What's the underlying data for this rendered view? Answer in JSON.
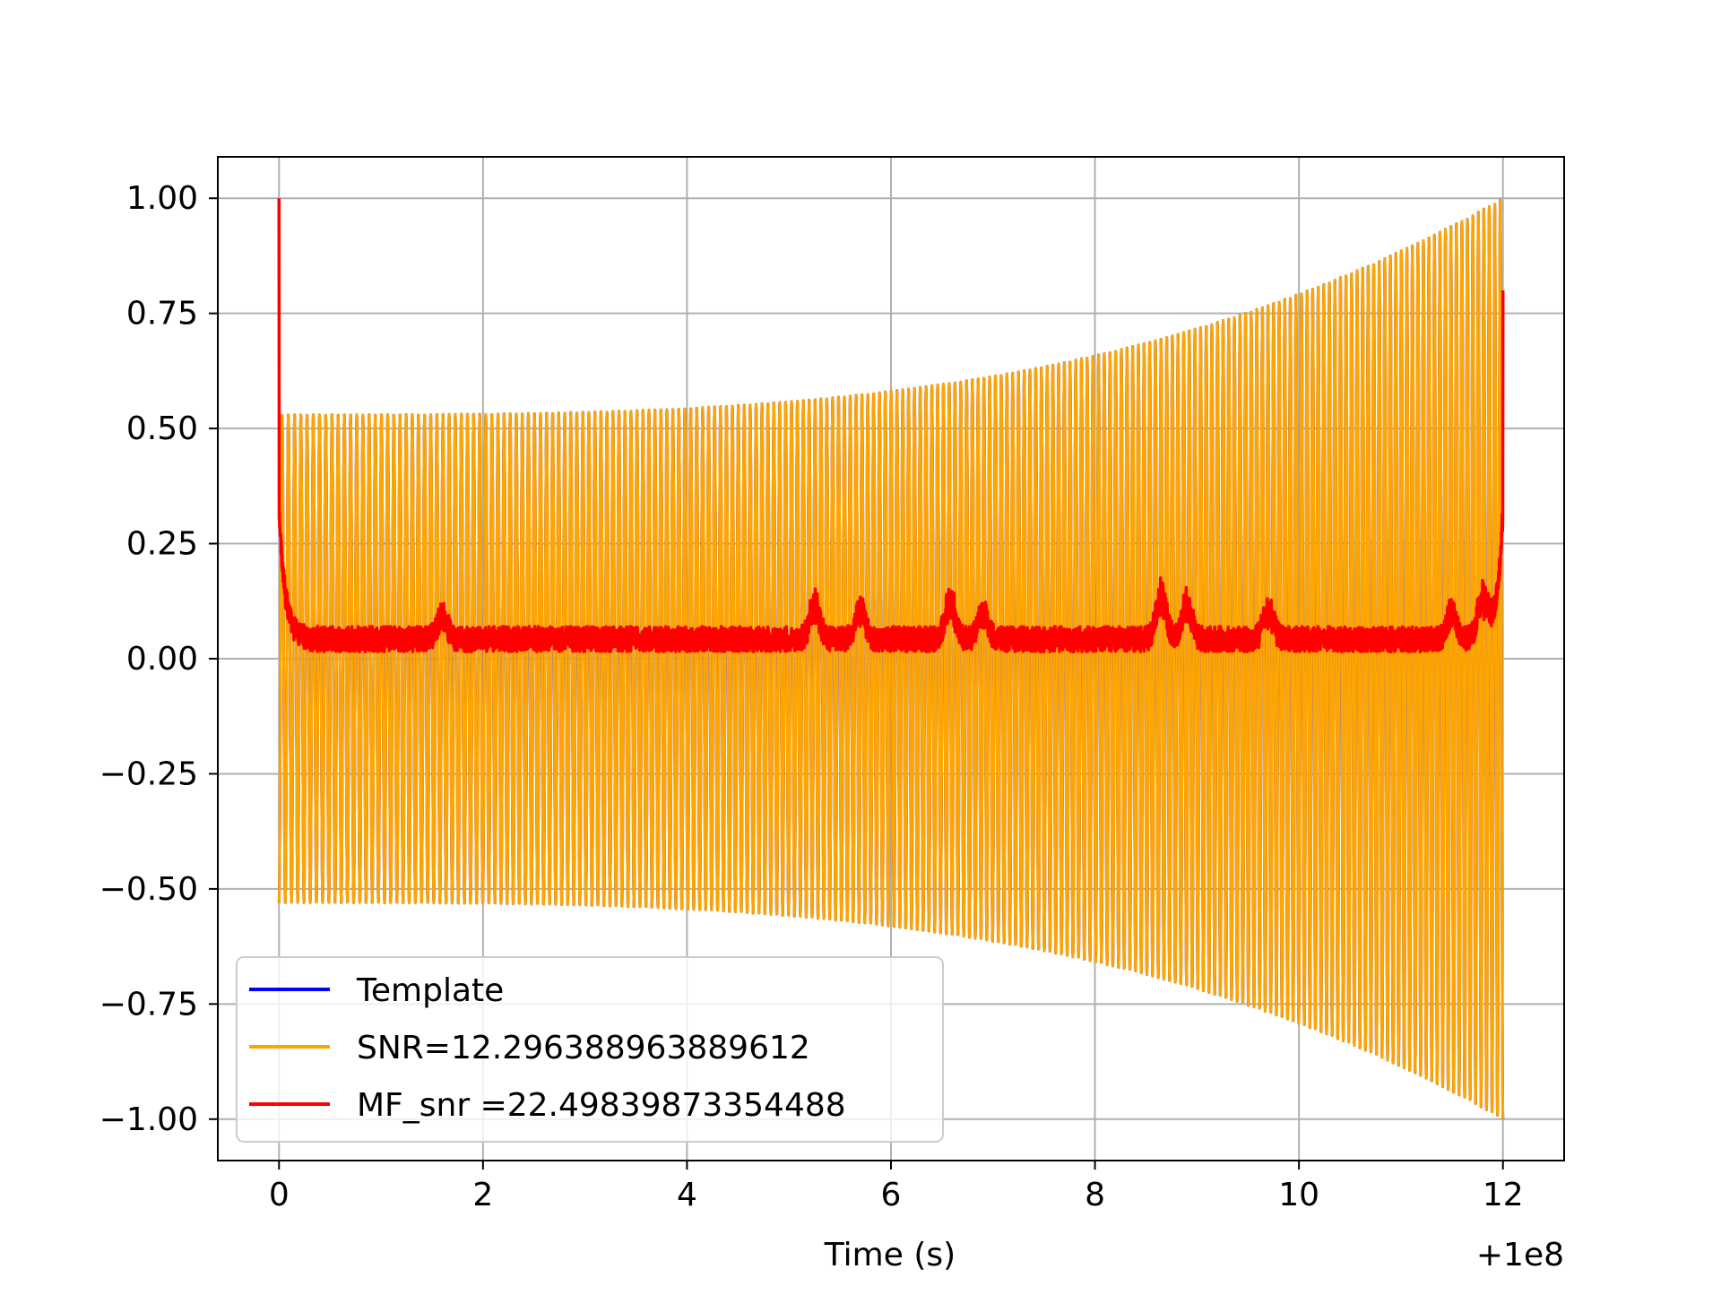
{
  "chart_data": {
    "type": "line",
    "title": "",
    "xlabel": "Time (s)",
    "ylabel": "",
    "x_offset_label": "+1e8",
    "xlim": [
      -0.6,
      12.6
    ],
    "ylim": [
      -1.09,
      1.09
    ],
    "grid": true,
    "x_ticks": [
      0,
      2,
      4,
      6,
      8,
      10,
      12
    ],
    "x_tick_labels": [
      "0",
      "2",
      "4",
      "6",
      "8",
      "10",
      "12"
    ],
    "y_ticks": [
      1.0,
      0.75,
      0.5,
      0.25,
      0.0,
      -0.25,
      -0.5,
      -0.75,
      -1.0
    ],
    "y_tick_labels": [
      "1.00",
      "0.75",
      "0.50",
      "0.25",
      "0.00",
      "−0.25",
      "−0.50",
      "−0.75",
      "−1.00"
    ],
    "legend_position": "lower-left",
    "series": [
      {
        "name": "Template",
        "legend_label": "Template",
        "color": "#0000ff",
        "description": "chirp waveform, fully overdrawn by orange series",
        "t_start": 0.0,
        "t_end": 12.0,
        "envelope_start": 0.53,
        "envelope_end": 1.0,
        "cycles": 210
      },
      {
        "name": "SNR",
        "legend_label": "SNR=12.296388963889612",
        "color": "#ffa500",
        "t_start": 0.0,
        "t_end": 12.0,
        "envelope_start": 0.53,
        "envelope_end": 1.0,
        "cycles": 210
      },
      {
        "name": "MF_snr",
        "legend_label": "MF_snr =22.49839873354488",
        "color": "#ff0000",
        "t_start": 0.0,
        "t_end": 12.0,
        "start_peak": 1.0,
        "end_peak": 0.8,
        "baseline_low": 0.0,
        "baseline_high": 0.1,
        "bumps": [
          {
            "t": 1.6,
            "v": 0.12
          },
          {
            "t": 5.25,
            "v": 0.15
          },
          {
            "t": 5.7,
            "v": 0.14
          },
          {
            "t": 6.58,
            "v": 0.165
          },
          {
            "t": 6.9,
            "v": 0.13
          },
          {
            "t": 8.65,
            "v": 0.175
          },
          {
            "t": 8.9,
            "v": 0.15
          },
          {
            "t": 9.7,
            "v": 0.14
          },
          {
            "t": 11.5,
            "v": 0.13
          },
          {
            "t": 11.8,
            "v": 0.155
          }
        ]
      }
    ]
  }
}
